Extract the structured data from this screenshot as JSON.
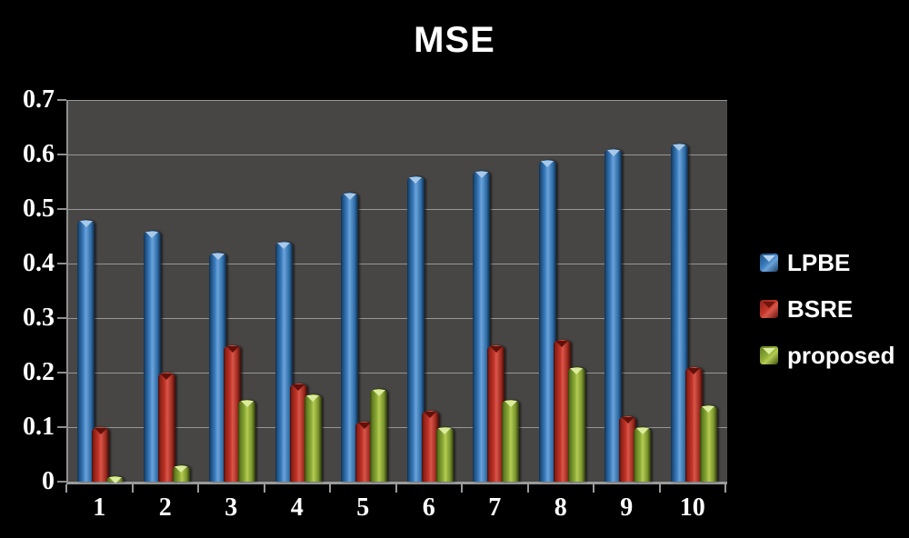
{
  "chart_title": "MSE",
  "chart_data": {
    "type": "bar",
    "title": "MSE",
    "categories": [
      "1",
      "2",
      "3",
      "4",
      "5",
      "6",
      "7",
      "8",
      "9",
      "10"
    ],
    "series": [
      {
        "name": "LPBE",
        "color": "#2e75b6",
        "values": [
          0.48,
          0.46,
          0.42,
          0.44,
          0.53,
          0.56,
          0.57,
          0.59,
          0.61,
          0.62
        ]
      },
      {
        "name": "BSRE",
        "color": "#c0392b",
        "values": [
          0.1,
          0.2,
          0.25,
          0.18,
          0.11,
          0.13,
          0.25,
          0.26,
          0.12,
          0.21
        ]
      },
      {
        "name": "proposed",
        "color": "#8fae3a",
        "values": [
          0.01,
          0.03,
          0.15,
          0.16,
          0.17,
          0.1,
          0.15,
          0.21,
          0.1,
          0.14
        ]
      }
    ],
    "xlabel": "",
    "ylabel": "",
    "ylim": [
      0,
      0.7
    ],
    "ytick_step": 0.1,
    "ytick_labels": [
      "0",
      "0.1",
      "0.2",
      "0.3",
      "0.4",
      "0.5",
      "0.6",
      "0.7"
    ],
    "grid": true,
    "legend_position": "right"
  },
  "colors": {
    "background": "#000000",
    "plot_background": "#474645",
    "gridline": "#a6a6a6",
    "axis": "#8f8f8f",
    "text": "#ffffff"
  }
}
